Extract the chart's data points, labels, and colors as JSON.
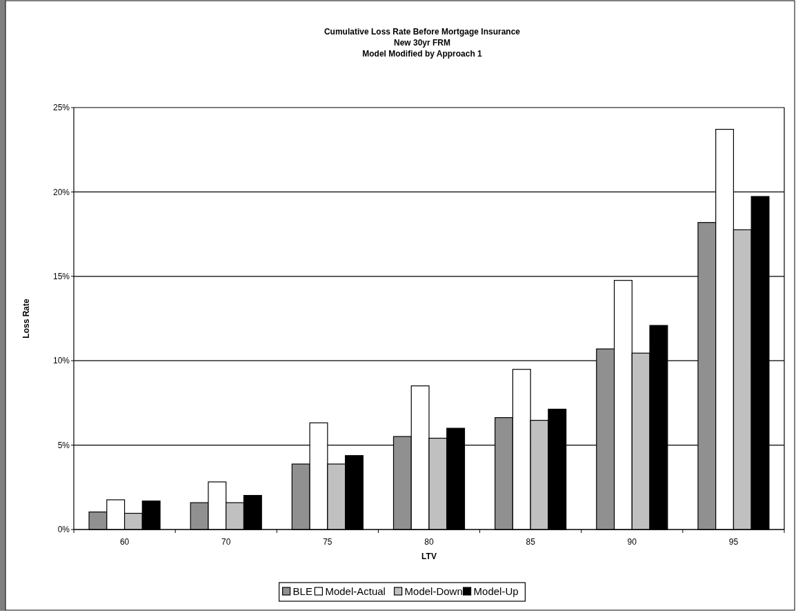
{
  "chart_data": {
    "type": "bar",
    "title": "Cumulative Loss Rate Before Mortgage Insurance\nNew 30yr FRM\nModel Modified by Approach 1",
    "xlabel": "LTV",
    "ylabel": "Loss Rate",
    "categories": [
      "60",
      "70",
      "75",
      "80",
      "85",
      "90",
      "95"
    ],
    "series": [
      {
        "name": "BLE",
        "color": "#909090",
        "values": [
          1.04,
          1.59,
          3.88,
          5.51,
          6.63,
          10.7,
          18.19
        ]
      },
      {
        "name": "Model-Actual",
        "color": "#ffffff",
        "values": [
          1.76,
          2.82,
          6.32,
          8.51,
          9.49,
          14.76,
          23.71
        ]
      },
      {
        "name": "Model-Down",
        "color": "#c0c0c0",
        "values": [
          0.96,
          1.59,
          3.88,
          5.41,
          6.47,
          10.45,
          17.76
        ]
      },
      {
        "name": "Model-Up",
        "color": "#000000",
        "values": [
          1.69,
          2.02,
          4.38,
          6.0,
          7.13,
          12.09,
          19.73
        ]
      }
    ],
    "ylim": [
      0,
      25
    ],
    "yticks": [
      {
        "value": 0,
        "label": "0%"
      },
      {
        "value": 5,
        "label": "5%"
      },
      {
        "value": 10,
        "label": "10%"
      },
      {
        "value": 15,
        "label": "15%"
      },
      {
        "value": 20,
        "label": "20%"
      },
      {
        "value": 25,
        "label": "25%"
      }
    ],
    "grid": "y",
    "legend": "bottom"
  }
}
